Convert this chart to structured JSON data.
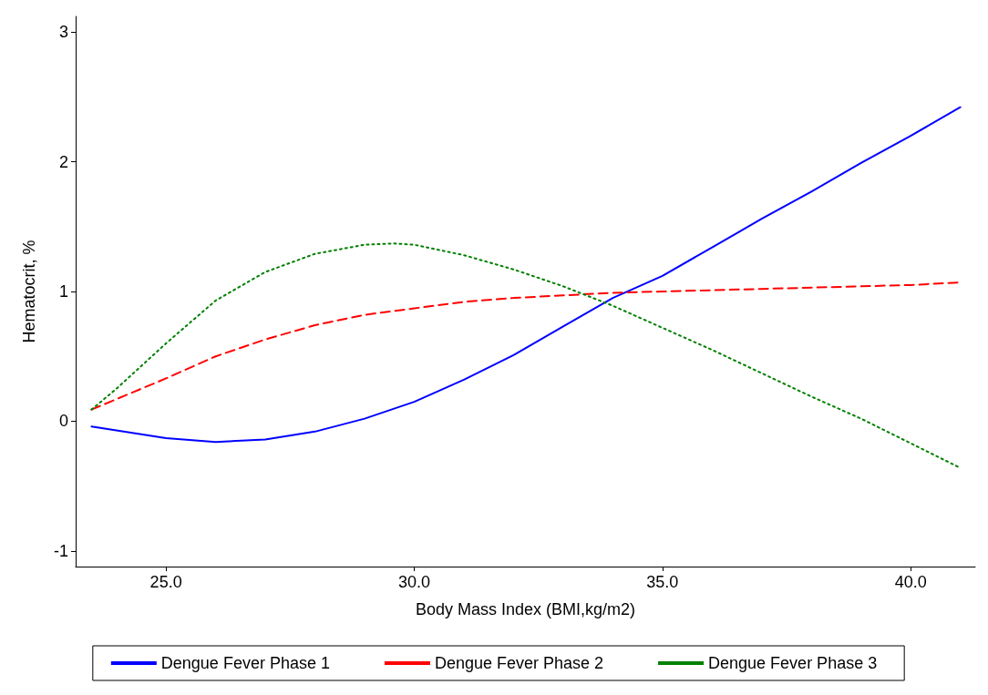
{
  "chart_data": {
    "type": "line",
    "xlabel": "Body Mass Index (BMI,kg/m2)",
    "ylabel": "Hematocrit, %",
    "xlim": [
      23.18,
      41.3
    ],
    "xticks": [
      {
        "value": 25,
        "label": "25.0"
      },
      {
        "value": 30,
        "label": "30.0"
      },
      {
        "value": 35,
        "label": "35.0"
      },
      {
        "value": 40,
        "label": "40.0"
      }
    ],
    "ylim": [
      -1.12,
      3.12
    ],
    "yticks": [
      -1,
      0,
      1,
      2,
      3
    ],
    "grid": false,
    "legend": "bottom",
    "marker": "none",
    "series": [
      {
        "name": "Dengue Fever Phase 1",
        "color": "#0000ff",
        "line_style": "solid",
        "x": [
          23.5,
          25,
          26,
          27,
          28,
          29,
          30,
          31,
          32,
          33,
          34,
          35,
          36,
          37,
          38,
          39,
          40,
          41
        ],
        "values": [
          -0.04,
          -0.13,
          -0.16,
          -0.14,
          -0.08,
          0.02,
          0.15,
          0.32,
          0.51,
          0.73,
          0.95,
          1.12,
          1.34,
          1.56,
          1.77,
          1.99,
          2.2,
          2.42
        ]
      },
      {
        "name": "Dengue Fever Phase 2",
        "color": "#ff0000",
        "line_style": "dashed",
        "x": [
          23.5,
          25,
          26,
          27,
          28,
          29,
          30,
          31,
          32,
          33,
          34,
          35,
          36,
          37,
          38,
          39,
          40,
          41
        ],
        "values": [
          0.09,
          0.33,
          0.5,
          0.63,
          0.74,
          0.82,
          0.87,
          0.92,
          0.95,
          0.97,
          0.99,
          1.0,
          1.01,
          1.02,
          1.03,
          1.04,
          1.05,
          1.07
        ]
      },
      {
        "name": "Dengue Fever Phase 3",
        "color": "#008000",
        "line_style": "dotted",
        "x": [
          23.5,
          24,
          25,
          26,
          27,
          28,
          29,
          29.6,
          30,
          31,
          32,
          33,
          34,
          35,
          36,
          37,
          38,
          39,
          40,
          41
        ],
        "values": [
          0.09,
          0.25,
          0.6,
          0.93,
          1.15,
          1.29,
          1.36,
          1.37,
          1.36,
          1.28,
          1.17,
          1.04,
          0.89,
          0.72,
          0.55,
          0.37,
          0.19,
          0.02,
          -0.17,
          -0.36
        ]
      }
    ]
  }
}
